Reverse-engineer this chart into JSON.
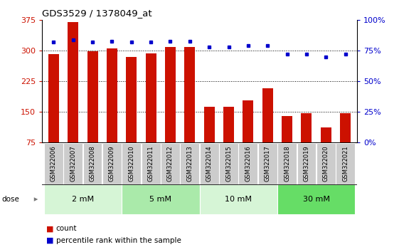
{
  "title": "GDS3529 / 1378049_at",
  "categories": [
    "GSM322006",
    "GSM322007",
    "GSM322008",
    "GSM322009",
    "GSM322010",
    "GSM322011",
    "GSM322012",
    "GSM322013",
    "GSM322014",
    "GSM322015",
    "GSM322016",
    "GSM322017",
    "GSM322018",
    "GSM322019",
    "GSM322020",
    "GSM322021"
  ],
  "counts": [
    292,
    370,
    298,
    305,
    284,
    293,
    310,
    310,
    163,
    162,
    178,
    208,
    140,
    147,
    112,
    146
  ],
  "percentiles": [
    82,
    84,
    82,
    83,
    82,
    82,
    83,
    83,
    78,
    78,
    79,
    79,
    72,
    72,
    70,
    72
  ],
  "bar_color": "#cc1100",
  "dot_color": "#0000cc",
  "ylim_left": [
    75,
    375
  ],
  "yticks_left": [
    75,
    150,
    225,
    300,
    375
  ],
  "ylim_right": [
    0,
    100
  ],
  "yticks_right": [
    0,
    25,
    50,
    75,
    100
  ],
  "groups": [
    {
      "label": "2 mM",
      "start": 0,
      "end": 4,
      "color": "#d6f5d6"
    },
    {
      "label": "5 mM",
      "start": 4,
      "end": 8,
      "color": "#aaeaaa"
    },
    {
      "label": "10 mM",
      "start": 8,
      "end": 12,
      "color": "#d6f5d6"
    },
    {
      "label": "30 mM",
      "start": 12,
      "end": 16,
      "color": "#66dd66"
    }
  ],
  "legend_count": "count",
  "legend_percentile": "percentile rank within the sample",
  "bar_bottom": 75,
  "bar_width": 0.55
}
